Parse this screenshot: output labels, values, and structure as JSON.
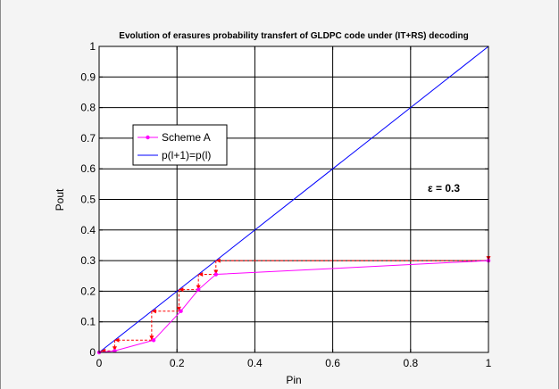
{
  "chart_data": {
    "type": "line",
    "title": "Evolution of erasures probability transfert of GLDPC code under (IT+RS) decoding",
    "xlabel": "Pin",
    "ylabel": "Pout",
    "xlim": [
      0,
      1
    ],
    "ylim": [
      0,
      1
    ],
    "xticks": [
      0,
      0.2,
      0.4,
      0.6,
      0.8,
      1
    ],
    "yticks": [
      0,
      0.1,
      0.2,
      0.3,
      0.4,
      0.5,
      0.6,
      0.7,
      0.8,
      0.9,
      1
    ],
    "grid": true,
    "legend_position": "upper-left",
    "annotation": "ε = 0.3",
    "series": [
      {
        "name": "Scheme A",
        "color": "#ff00ff",
        "marker": "dot",
        "x": [
          0,
          0.04,
          0.14,
          0.21,
          0.255,
          0.3,
          1.0
        ],
        "y": [
          0,
          0.005,
          0.04,
          0.135,
          0.205,
          0.255,
          0.3
        ]
      },
      {
        "name": "p(l+1)=p(l)",
        "color": "#0000ff",
        "x": [
          0,
          1
        ],
        "y": [
          0,
          1
        ]
      },
      {
        "color": "#ff0000",
        "style": "dashed-arrows",
        "x": [
          1.0,
          1.0,
          0.3,
          0.3,
          0.255,
          0.255,
          0.205,
          0.205,
          0.135,
          0.135,
          0.04,
          0.04,
          0.005,
          0.005,
          0
        ],
        "y": [
          1.0,
          0.3,
          0.3,
          0.255,
          0.255,
          0.205,
          0.205,
          0.135,
          0.135,
          0.04,
          0.04,
          0.005,
          0.005,
          0,
          0
        ]
      }
    ]
  }
}
